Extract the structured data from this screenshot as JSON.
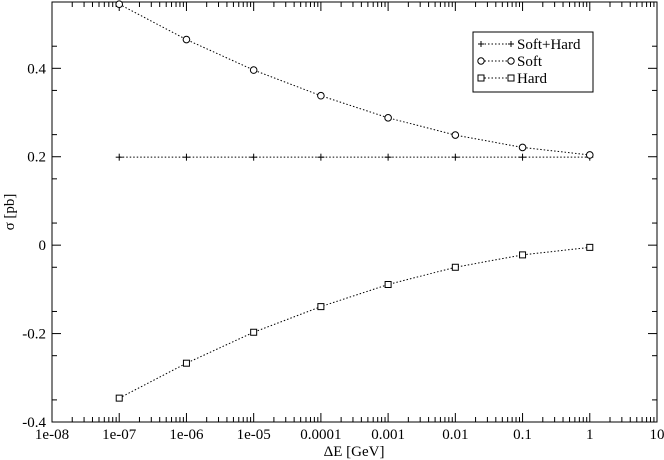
{
  "chart_data": {
    "type": "line",
    "x_scale": "log",
    "xlabel": "ΔE [GeV]",
    "ylabel": "σ [pb]",
    "xlim": [
      1e-08,
      10
    ],
    "ylim": [
      -0.4,
      0.55
    ],
    "x_ticks": [
      1e-08,
      1e-07,
      1e-06,
      1e-05,
      0.0001,
      0.001,
      0.01,
      0.1,
      1,
      10
    ],
    "x_tick_labels": [
      "1e-08",
      "1e-07",
      "1e-06",
      "1e-05",
      "0.0001",
      "0.001",
      "0.01",
      "0.1",
      "1",
      "10"
    ],
    "y_ticks": [
      -0.4,
      -0.2,
      0,
      0.2,
      0.4
    ],
    "y_tick_labels": [
      "-0.4",
      "-0.2",
      "0",
      "0.2",
      "0.4"
    ],
    "grid": false,
    "legend_position": "top-right",
    "x": [
      1e-07,
      1e-06,
      1e-05,
      0.0001,
      0.001,
      0.01,
      0.1,
      1
    ],
    "series": [
      {
        "name": "Soft+Hard",
        "marker": "plus",
        "values": [
          0.199,
          0.199,
          0.199,
          0.199,
          0.199,
          0.199,
          0.199,
          0.199
        ]
      },
      {
        "name": "Soft",
        "marker": "circle",
        "values": [
          0.545,
          0.465,
          0.396,
          0.338,
          0.288,
          0.249,
          0.221,
          0.204
        ]
      },
      {
        "name": "Hard",
        "marker": "square",
        "values": [
          -0.346,
          -0.267,
          -0.197,
          -0.139,
          -0.089,
          -0.05,
          -0.022,
          -0.005
        ]
      }
    ]
  }
}
